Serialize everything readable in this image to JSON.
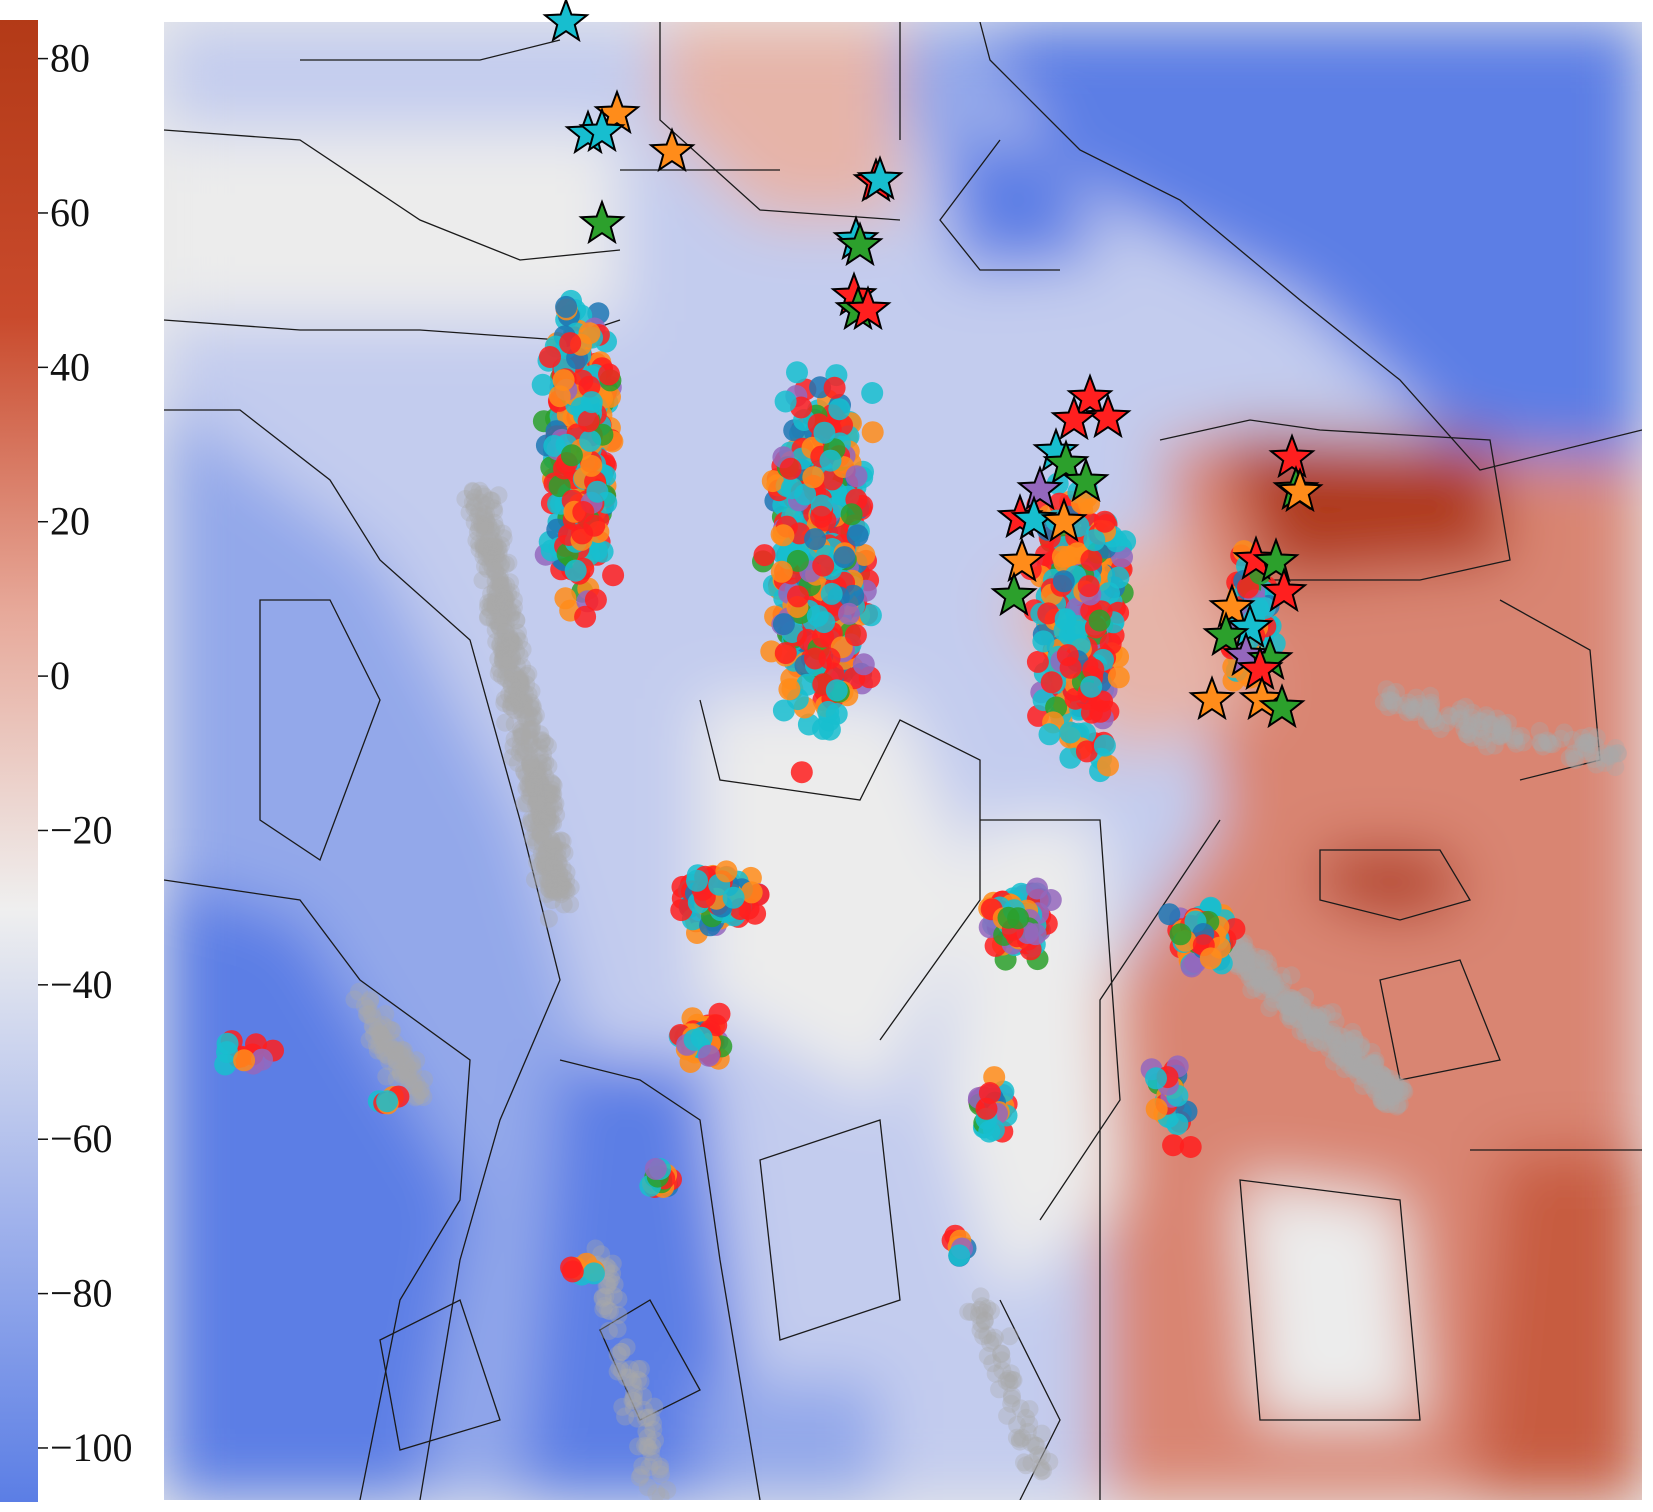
{
  "chart_data": {
    "type": "heatmap",
    "title": "",
    "xlabel": "",
    "ylabel": "",
    "colorbar": {
      "range": [
        -107,
        85
      ],
      "ticks": [
        80,
        60,
        40,
        20,
        0,
        -20,
        -40,
        -60,
        -80,
        -100
      ],
      "tick_labels": [
        "80",
        "60",
        "40",
        "20",
        "0",
        "−20",
        "−40",
        "−60",
        "−80",
        "−100"
      ],
      "colormap": [
        "#5b7ee5",
        "#a4b5ec",
        "#efefef",
        "#e7a99a",
        "#c94a2c",
        "#b33a17"
      ]
    },
    "categories": [
      "red",
      "orange",
      "green",
      "purple",
      "cyan",
      "blue"
    ],
    "series_colors": {
      "red": "#ff1f1f",
      "orange": "#ff8c1a",
      "green": "#2ca02c",
      "purple": "#9467bd",
      "cyan": "#17becf",
      "blue": "#1f77b4",
      "background_points": "#a8a8a8"
    },
    "grid": false,
    "legend": "none"
  }
}
